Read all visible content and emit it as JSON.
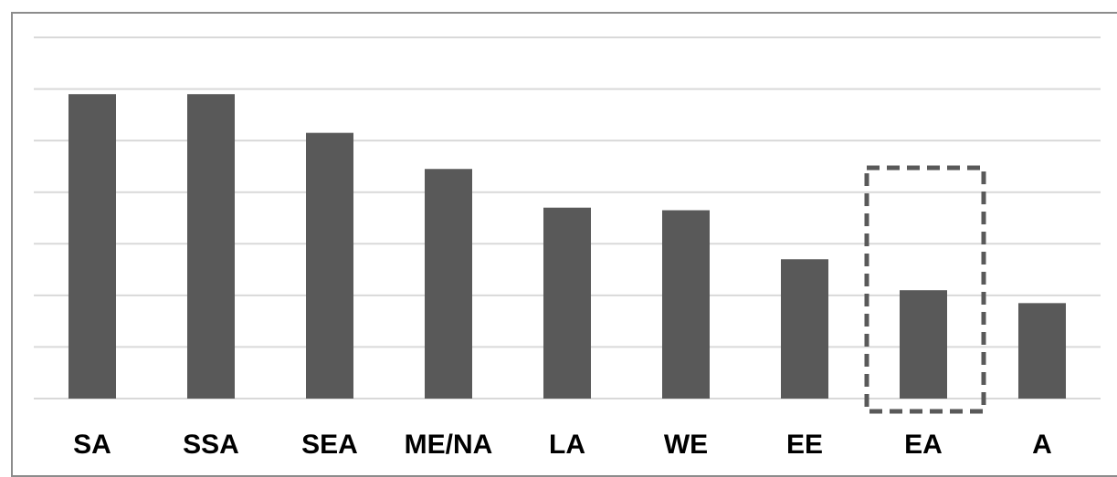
{
  "chart_data": {
    "type": "bar",
    "categories": [
      "SA",
      "SSA",
      "SEA",
      "ME/NA",
      "LA",
      "WE",
      "EE",
      "EA",
      "A"
    ],
    "values": [
      5.9,
      5.9,
      5.15,
      4.45,
      3.7,
      3.65,
      2.7,
      2.1,
      1.85
    ],
    "title": "",
    "xlabel": "",
    "ylabel": "",
    "ylim": [
      0,
      7
    ],
    "gridlines": 7,
    "y_tick_labels_visible": false,
    "grid": true,
    "highlight_category": "EA",
    "highlight_style": "dashed-box",
    "colors": {
      "bar": "#595959",
      "grid": "#d9d9d9",
      "highlight_border": "#595959",
      "frame": "#8c8c8c"
    }
  }
}
